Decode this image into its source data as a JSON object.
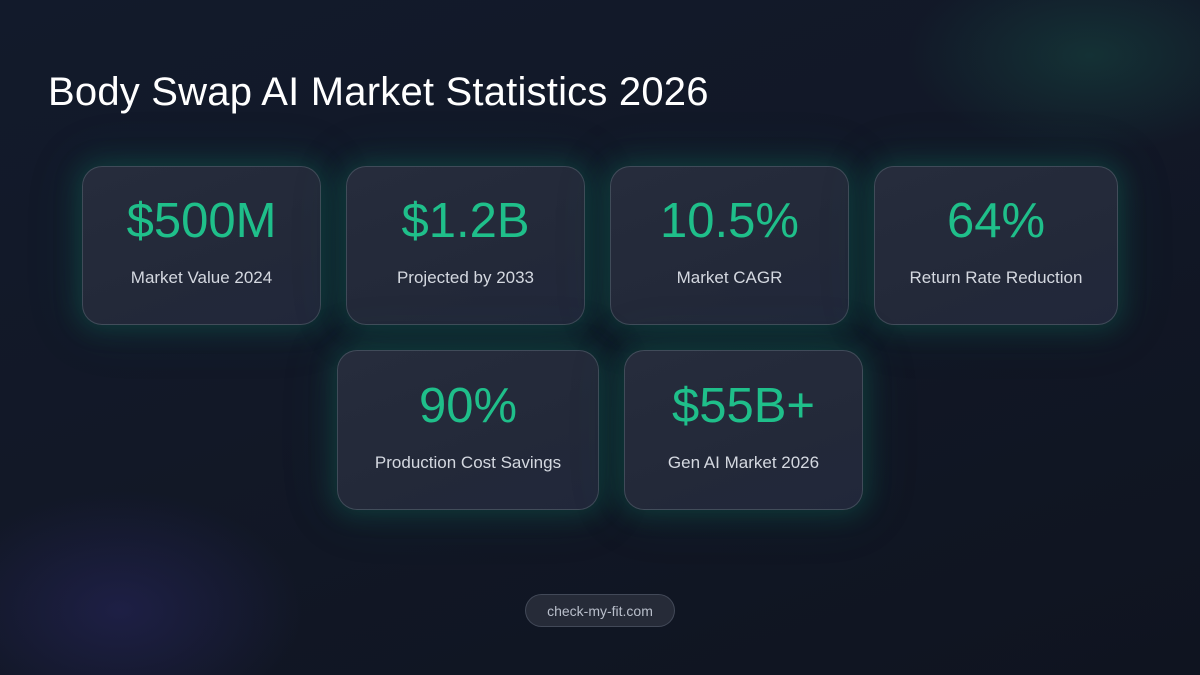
{
  "title": "Body Swap AI Market Statistics 2026",
  "stats": [
    {
      "value": "$500M",
      "label": "Market Value 2024"
    },
    {
      "value": "$1.2B",
      "label": "Projected by 2033"
    },
    {
      "value": "10.5%",
      "label": "Market CAGR"
    },
    {
      "value": "64%",
      "label": "Return Rate Reduction"
    },
    {
      "value": "90%",
      "label": "Production Cost Savings"
    },
    {
      "value": "$55B+",
      "label": "Gen AI Market 2026"
    }
  ],
  "footer": {
    "site_label": "check-my-fit.com"
  },
  "colors": {
    "accent": "#1fbf8a",
    "background": "#121827",
    "card": "#252b3b",
    "label": "#d4d8e0"
  }
}
